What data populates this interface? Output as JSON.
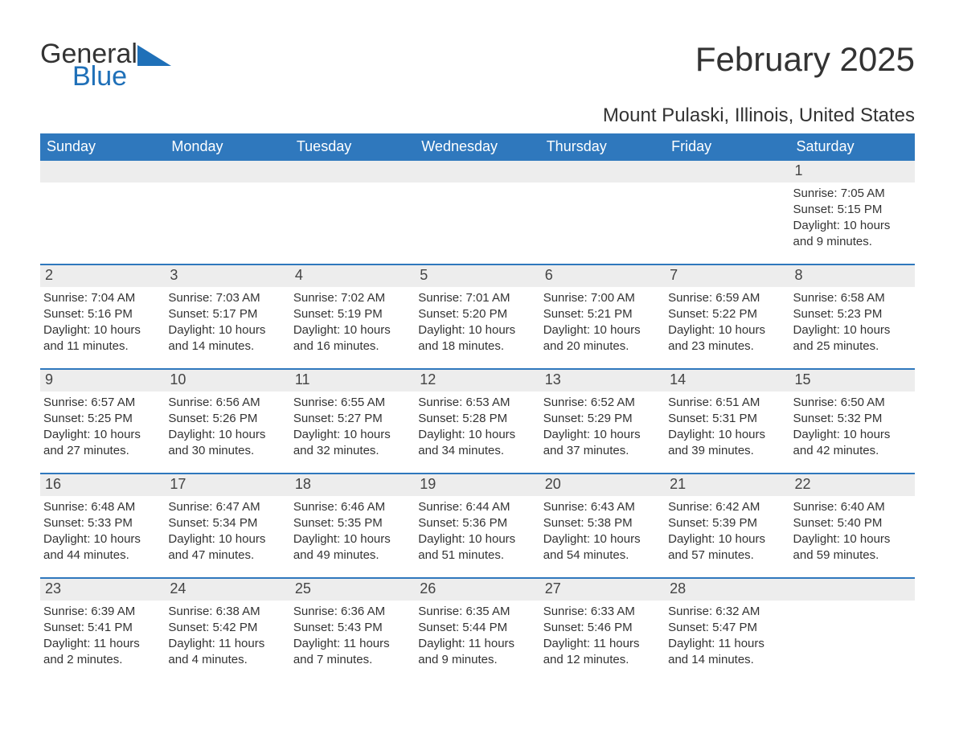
{
  "logo": {
    "word1": "General",
    "word2": "Blue",
    "shape_color": "#1f70b8",
    "text_color_dark": "#333333"
  },
  "title": "February 2025",
  "location": "Mount Pulaski, Illinois, United States",
  "colors": {
    "header_bg": "#2f78bd",
    "header_text": "#ffffff",
    "daynum_bg": "#ededed",
    "body_text": "#333333",
    "border": "#2f78bd",
    "page_bg": "#ffffff"
  },
  "fonts": {
    "title_size": 42,
    "location_size": 24,
    "dayheader_size": 18,
    "daynum_size": 18,
    "body_size": 15
  },
  "day_headers": [
    "Sunday",
    "Monday",
    "Tuesday",
    "Wednesday",
    "Thursday",
    "Friday",
    "Saturday"
  ],
  "weeks": [
    [
      null,
      null,
      null,
      null,
      null,
      null,
      {
        "n": "1",
        "sunrise": "Sunrise: 7:05 AM",
        "sunset": "Sunset: 5:15 PM",
        "daylight": "Daylight: 10 hours and 9 minutes."
      }
    ],
    [
      {
        "n": "2",
        "sunrise": "Sunrise: 7:04 AM",
        "sunset": "Sunset: 5:16 PM",
        "daylight": "Daylight: 10 hours and 11 minutes."
      },
      {
        "n": "3",
        "sunrise": "Sunrise: 7:03 AM",
        "sunset": "Sunset: 5:17 PM",
        "daylight": "Daylight: 10 hours and 14 minutes."
      },
      {
        "n": "4",
        "sunrise": "Sunrise: 7:02 AM",
        "sunset": "Sunset: 5:19 PM",
        "daylight": "Daylight: 10 hours and 16 minutes."
      },
      {
        "n": "5",
        "sunrise": "Sunrise: 7:01 AM",
        "sunset": "Sunset: 5:20 PM",
        "daylight": "Daylight: 10 hours and 18 minutes."
      },
      {
        "n": "6",
        "sunrise": "Sunrise: 7:00 AM",
        "sunset": "Sunset: 5:21 PM",
        "daylight": "Daylight: 10 hours and 20 minutes."
      },
      {
        "n": "7",
        "sunrise": "Sunrise: 6:59 AM",
        "sunset": "Sunset: 5:22 PM",
        "daylight": "Daylight: 10 hours and 23 minutes."
      },
      {
        "n": "8",
        "sunrise": "Sunrise: 6:58 AM",
        "sunset": "Sunset: 5:23 PM",
        "daylight": "Daylight: 10 hours and 25 minutes."
      }
    ],
    [
      {
        "n": "9",
        "sunrise": "Sunrise: 6:57 AM",
        "sunset": "Sunset: 5:25 PM",
        "daylight": "Daylight: 10 hours and 27 minutes."
      },
      {
        "n": "10",
        "sunrise": "Sunrise: 6:56 AM",
        "sunset": "Sunset: 5:26 PM",
        "daylight": "Daylight: 10 hours and 30 minutes."
      },
      {
        "n": "11",
        "sunrise": "Sunrise: 6:55 AM",
        "sunset": "Sunset: 5:27 PM",
        "daylight": "Daylight: 10 hours and 32 minutes."
      },
      {
        "n": "12",
        "sunrise": "Sunrise: 6:53 AM",
        "sunset": "Sunset: 5:28 PM",
        "daylight": "Daylight: 10 hours and 34 minutes."
      },
      {
        "n": "13",
        "sunrise": "Sunrise: 6:52 AM",
        "sunset": "Sunset: 5:29 PM",
        "daylight": "Daylight: 10 hours and 37 minutes."
      },
      {
        "n": "14",
        "sunrise": "Sunrise: 6:51 AM",
        "sunset": "Sunset: 5:31 PM",
        "daylight": "Daylight: 10 hours and 39 minutes."
      },
      {
        "n": "15",
        "sunrise": "Sunrise: 6:50 AM",
        "sunset": "Sunset: 5:32 PM",
        "daylight": "Daylight: 10 hours and 42 minutes."
      }
    ],
    [
      {
        "n": "16",
        "sunrise": "Sunrise: 6:48 AM",
        "sunset": "Sunset: 5:33 PM",
        "daylight": "Daylight: 10 hours and 44 minutes."
      },
      {
        "n": "17",
        "sunrise": "Sunrise: 6:47 AM",
        "sunset": "Sunset: 5:34 PM",
        "daylight": "Daylight: 10 hours and 47 minutes."
      },
      {
        "n": "18",
        "sunrise": "Sunrise: 6:46 AM",
        "sunset": "Sunset: 5:35 PM",
        "daylight": "Daylight: 10 hours and 49 minutes."
      },
      {
        "n": "19",
        "sunrise": "Sunrise: 6:44 AM",
        "sunset": "Sunset: 5:36 PM",
        "daylight": "Daylight: 10 hours and 51 minutes."
      },
      {
        "n": "20",
        "sunrise": "Sunrise: 6:43 AM",
        "sunset": "Sunset: 5:38 PM",
        "daylight": "Daylight: 10 hours and 54 minutes."
      },
      {
        "n": "21",
        "sunrise": "Sunrise: 6:42 AM",
        "sunset": "Sunset: 5:39 PM",
        "daylight": "Daylight: 10 hours and 57 minutes."
      },
      {
        "n": "22",
        "sunrise": "Sunrise: 6:40 AM",
        "sunset": "Sunset: 5:40 PM",
        "daylight": "Daylight: 10 hours and 59 minutes."
      }
    ],
    [
      {
        "n": "23",
        "sunrise": "Sunrise: 6:39 AM",
        "sunset": "Sunset: 5:41 PM",
        "daylight": "Daylight: 11 hours and 2 minutes."
      },
      {
        "n": "24",
        "sunrise": "Sunrise: 6:38 AM",
        "sunset": "Sunset: 5:42 PM",
        "daylight": "Daylight: 11 hours and 4 minutes."
      },
      {
        "n": "25",
        "sunrise": "Sunrise: 6:36 AM",
        "sunset": "Sunset: 5:43 PM",
        "daylight": "Daylight: 11 hours and 7 minutes."
      },
      {
        "n": "26",
        "sunrise": "Sunrise: 6:35 AM",
        "sunset": "Sunset: 5:44 PM",
        "daylight": "Daylight: 11 hours and 9 minutes."
      },
      {
        "n": "27",
        "sunrise": "Sunrise: 6:33 AM",
        "sunset": "Sunset: 5:46 PM",
        "daylight": "Daylight: 11 hours and 12 minutes."
      },
      {
        "n": "28",
        "sunrise": "Sunrise: 6:32 AM",
        "sunset": "Sunset: 5:47 PM",
        "daylight": "Daylight: 11 hours and 14 minutes."
      },
      null
    ]
  ]
}
